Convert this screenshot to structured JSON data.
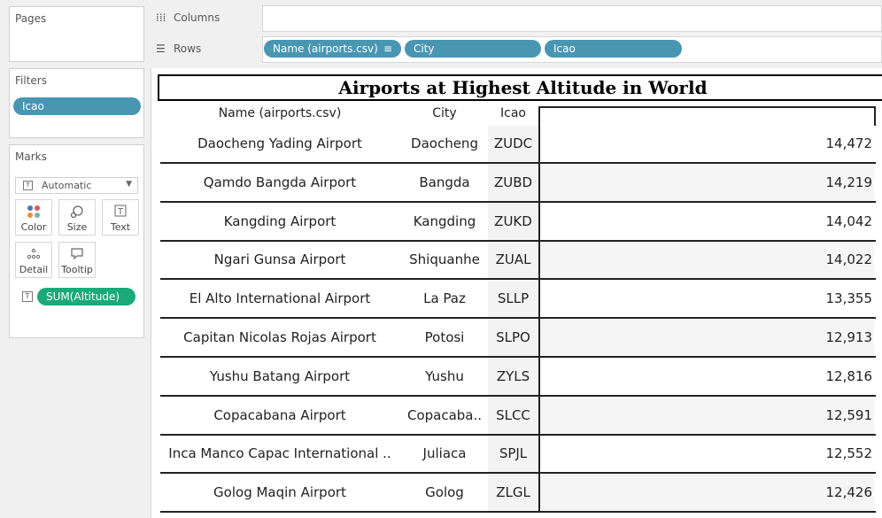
{
  "left_panel": {
    "pages": {
      "title": "Pages"
    },
    "filters": {
      "title": "Filters",
      "pills": [
        "Icao"
      ]
    },
    "marks": {
      "title": "Marks",
      "mark_type": "Automatic",
      "buttons": [
        {
          "label": "Color",
          "icon": "color-dots-icon"
        },
        {
          "label": "Size",
          "icon": "size-icon"
        },
        {
          "label": "Text",
          "icon": "text-icon"
        },
        {
          "label": "Detail",
          "icon": "detail-icon"
        },
        {
          "label": "Tooltip",
          "icon": "tooltip-icon"
        }
      ],
      "measure_pill": "SUM(Altitude)"
    }
  },
  "shelves": {
    "columns": {
      "label": "Columns"
    },
    "rows": {
      "label": "Rows",
      "pills": [
        "Name (airports.csv)",
        "City",
        "Icao"
      ]
    }
  },
  "view": {
    "title": "Airports at Highest Altitude in World",
    "headers": {
      "name": "Name (airports.csv)",
      "city": "City",
      "icao": "Icao"
    },
    "rows": [
      {
        "name": "Daocheng Yading Airport",
        "city": "Daocheng",
        "icao": "ZUDC",
        "altitude": "14,472"
      },
      {
        "name": "Qamdo Bangda Airport",
        "city": "Bangda",
        "icao": "ZUBD",
        "altitude": "14,219"
      },
      {
        "name": "Kangding Airport",
        "city": "Kangding",
        "icao": "ZUKD",
        "altitude": "14,042"
      },
      {
        "name": "Ngari Gunsa Airport",
        "city": "Shiquanhe",
        "icao": "ZUAL",
        "altitude": "14,022"
      },
      {
        "name": "El Alto International Airport",
        "city": "La Paz",
        "icao": "SLLP",
        "altitude": "13,355"
      },
      {
        "name": "Capitan Nicolas Rojas Airport",
        "city": "Potosi",
        "icao": "SLPO",
        "altitude": "12,913"
      },
      {
        "name": "Yushu Batang Airport",
        "city": "Yushu",
        "icao": "ZYLS",
        "altitude": "12,816"
      },
      {
        "name": "Copacabana Airport",
        "city": "Copacaba..",
        "icao": "SLCC",
        "altitude": "12,591"
      },
      {
        "name": "Inca Manco Capac International ..",
        "city": "Juliaca",
        "icao": "SPJL",
        "altitude": "12,552"
      },
      {
        "name": "Golog Maqin Airport",
        "city": "Golog",
        "icao": "ZLGL",
        "altitude": "12,426"
      }
    ]
  },
  "colors": {
    "dimension_pill": "#4996b2",
    "measure_pill": "#1aaa7a"
  }
}
